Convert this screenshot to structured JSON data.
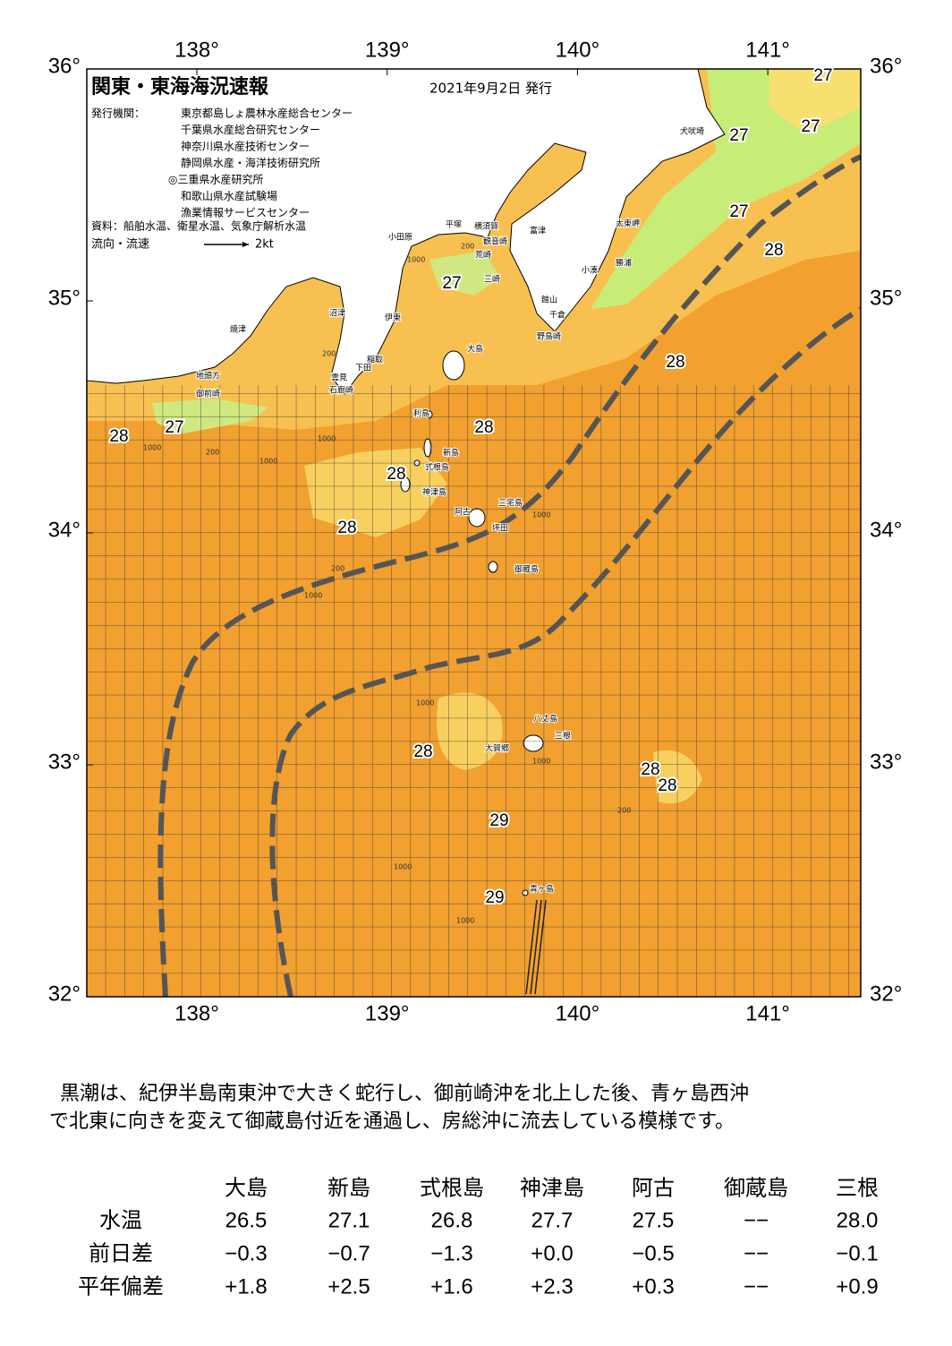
{
  "header": {
    "title": "関東・東海海況速報",
    "date": "2021年9月2日 発行",
    "issuer_label": "発行機関：",
    "issuers": [
      "東京都島しょ農林水産総合センター",
      "千葉県水産総合研究センター",
      "神奈川県水産技術センター",
      "静岡県水産・海洋技術研究所",
      "◎三重県水産研究所",
      "和歌山県水産試験場",
      "漁業情報サービスセンター"
    ],
    "sources": "資料：船舶水温、衛星水温、気象庁解析水温",
    "flow_label": "流向・流速",
    "flow_scale": "2kt"
  },
  "map": {
    "lon_ticks": [
      {
        "value": 138,
        "label": "138°"
      },
      {
        "value": 139,
        "label": "139°"
      },
      {
        "value": 140,
        "label": "140°"
      },
      {
        "value": 141,
        "label": "141°"
      }
    ],
    "lat_ticks": [
      {
        "value": 36,
        "label": "36°"
      },
      {
        "value": 35,
        "label": "35°"
      },
      {
        "value": 34,
        "label": "34°"
      },
      {
        "value": 33,
        "label": "33°"
      },
      {
        "value": 32,
        "label": "32°"
      }
    ],
    "temp_labels": [
      27,
      27,
      27,
      27,
      28,
      27,
      28,
      27,
      28,
      28,
      28,
      28,
      28,
      28,
      28,
      29,
      29
    ],
    "place_names": [
      "犬吠埼",
      "太東岬",
      "勝浦",
      "小湊",
      "富津",
      "横須賀",
      "観音崎",
      "平塚",
      "小田原",
      "荒崎",
      "三崎",
      "館山",
      "千倉",
      "野島崎",
      "伊東",
      "沼津",
      "焼津",
      "稲取",
      "下田",
      "雲見",
      "石廊崎",
      "地頭方",
      "御前崎",
      "大島",
      "利島",
      "新島",
      "式根島",
      "神津島",
      "三宅島",
      "阿古",
      "坪田",
      "御蔵島",
      "八丈島",
      "三根",
      "大賀郷",
      "青ヶ島"
    ],
    "depth_labels": [
      "1000",
      "200",
      "1000",
      "200",
      "1000",
      "200",
      "1000",
      "1000",
      "200",
      "1000",
      "1000",
      "1000",
      "200",
      "1000",
      "1000"
    ]
  },
  "summary": [
    "黒潮は、紀伊半島南東沖で大きく蛇行し、御前崎沖を北上した後、青ヶ島西沖",
    "で北東に向きを変えて御蔵島付近を通過し、房総沖に流去している模様です。"
  ],
  "table": {
    "columns": [
      "大島",
      "新島",
      "式根島",
      "神津島",
      "阿古",
      "御蔵島",
      "三根"
    ],
    "rows": [
      {
        "label": "水温",
        "values": [
          "26.5",
          "27.1",
          "26.8",
          "27.7",
          "27.5",
          "−−",
          "28.0"
        ]
      },
      {
        "label": "前日差",
        "values": [
          "−0.3",
          "−0.7",
          "−1.3",
          "+0.0",
          "−0.5",
          "−−",
          "−0.1"
        ]
      },
      {
        "label": "平年偏差",
        "values": [
          "+1.8",
          "+2.5",
          "+1.6",
          "+2.3",
          "+0.3",
          "−−",
          "+0.9"
        ]
      }
    ]
  }
}
